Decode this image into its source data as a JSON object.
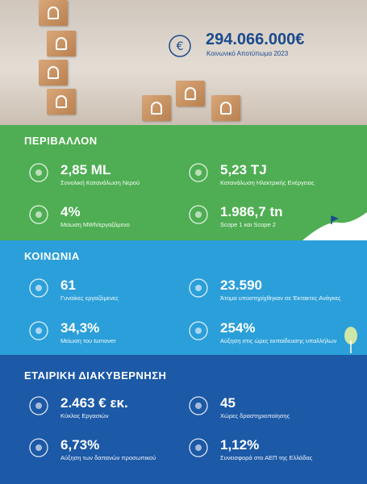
{
  "header": {
    "amount": "294.066.000€",
    "caption": "Κοινωνικό Αποτύπωμα 2023"
  },
  "sections": [
    {
      "title": "ΠΕΡΙΒΑΛΛΟΝ",
      "stats": [
        {
          "value": "2,85 ML",
          "label": "Συνολική Κατανάλωση Νερού"
        },
        {
          "value": "5,23 TJ",
          "label": "Κατανάλωση Ηλεκτρικής Ενέργειας"
        },
        {
          "value": "4%",
          "label": "Μείωση MWh/εργαζόμενο"
        },
        {
          "value": "1.986,7 tn",
          "label": "Scope 1 και Scope 2"
        }
      ]
    },
    {
      "title": "ΚΟΙΝΩΝΙΑ",
      "stats": [
        {
          "value": "61",
          "label": "Γυναίκες εργαζόμενες"
        },
        {
          "value": "23.590",
          "label": "Άτομα υποστηρίχθηκαν σε Έκτακτες Ανάγκες"
        },
        {
          "value": "34,3%",
          "label": "Μείωση του turnover"
        },
        {
          "value": "254%",
          "label": "Αύξηση στις ώρες εκπαίδευσης υπαλλήλων"
        }
      ]
    },
    {
      "title": "ΕΤΑΙΡΙΚΗ ΔΙΑΚΥΒΕΡΝΗΣΗ",
      "stats": [
        {
          "value": "2.463 € εκ.",
          "label": "Κύκλος Εργασιών"
        },
        {
          "value": "45",
          "label": "Χώρες δραστηριοποίησης"
        },
        {
          "value": "6,73%",
          "label": "Αύξηση των δαπανών προσωπικού"
        },
        {
          "value": "1,12%",
          "label": "Συνεισφορά στο ΑΕΠ της Ελλάδας"
        }
      ]
    }
  ]
}
